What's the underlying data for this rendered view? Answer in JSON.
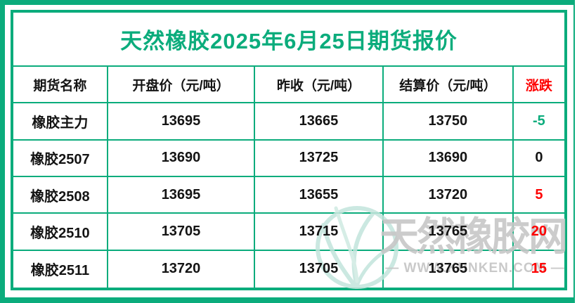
{
  "page": {
    "title": "天然橡胶2025年6月25日期货报价"
  },
  "table": {
    "headers": [
      {
        "label": "期货名称",
        "color": "black"
      },
      {
        "label": "开盘价（元/吨）",
        "color": "black"
      },
      {
        "label": "昨收（元/吨）",
        "color": "black"
      },
      {
        "label": "结算价（元/吨）",
        "color": "black"
      },
      {
        "label": "涨跌",
        "color": "red"
      }
    ],
    "rows": [
      {
        "name": "橡胶主力",
        "open": "13695",
        "prev": "13665",
        "settle": "13750",
        "change": "-5",
        "change_color": "green"
      },
      {
        "name": "橡胶2507",
        "open": "13690",
        "prev": "13725",
        "settle": "13690",
        "change": "0",
        "change_color": "black"
      },
      {
        "name": "橡胶2508",
        "open": "13695",
        "prev": "13655",
        "settle": "13720",
        "change": "5",
        "change_color": "red"
      },
      {
        "name": "橡胶2510",
        "open": "13705",
        "prev": "13715",
        "settle": "13765",
        "change": "20",
        "change_color": "red"
      },
      {
        "name": "橡胶2511",
        "open": "13720",
        "prev": "13705",
        "settle": "13765",
        "change": "15",
        "change_color": "red"
      }
    ]
  },
  "watermark": {
    "logo_icon": "globe-sprout-icon",
    "site_name": "天然橡胶网",
    "url_line": "— WWW.KUNKEN.COM —"
  },
  "colors": {
    "green": "#0bac7c",
    "red": "#fe0000",
    "black": "#141414",
    "watermark_gray": "#c7c7c7",
    "watermark_teal": "#c3e5dc"
  },
  "chart_data": {
    "type": "table",
    "title": "天然橡胶2025年6月25日期货报价",
    "columns": [
      "期货名称",
      "开盘价（元/吨）",
      "昨收（元/吨）",
      "结算价（元/吨）",
      "涨跌"
    ],
    "rows": [
      [
        "橡胶主力",
        13695,
        13665,
        13750,
        -5
      ],
      [
        "橡胶2507",
        13690,
        13725,
        13690,
        0
      ],
      [
        "橡胶2508",
        13695,
        13655,
        13720,
        5
      ],
      [
        "橡胶2510",
        13705,
        13715,
        13765,
        20
      ],
      [
        "橡胶2511",
        13720,
        13705,
        13765,
        15
      ]
    ],
    "notes": "涨跌 column colored: negative=green, zero=black, positive=red"
  }
}
